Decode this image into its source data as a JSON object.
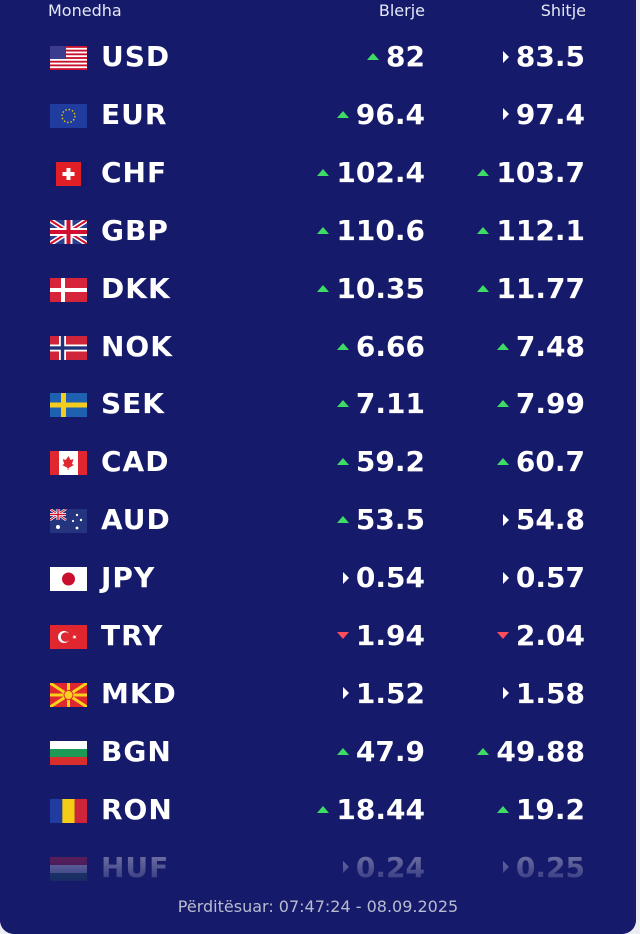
{
  "header": {
    "currency": "Monedha",
    "buy": "Blerje",
    "sell": "Shitje"
  },
  "rates": [
    {
      "code": "USD",
      "flag": "us-flag-icon",
      "buy": "82",
      "buy_trend": "up",
      "sell": "83.5",
      "sell_trend": "flat"
    },
    {
      "code": "EUR",
      "flag": "eu-flag-icon",
      "buy": "96.4",
      "buy_trend": "up",
      "sell": "97.4",
      "sell_trend": "flat"
    },
    {
      "code": "CHF",
      "flag": "ch-flag-icon",
      "buy": "102.4",
      "buy_trend": "up",
      "sell": "103.7",
      "sell_trend": "up"
    },
    {
      "code": "GBP",
      "flag": "gb-flag-icon",
      "buy": "110.6",
      "buy_trend": "up",
      "sell": "112.1",
      "sell_trend": "up"
    },
    {
      "code": "DKK",
      "flag": "dk-flag-icon",
      "buy": "10.35",
      "buy_trend": "up",
      "sell": "11.77",
      "sell_trend": "up"
    },
    {
      "code": "NOK",
      "flag": "no-flag-icon",
      "buy": "6.66",
      "buy_trend": "up",
      "sell": "7.48",
      "sell_trend": "up"
    },
    {
      "code": "SEK",
      "flag": "se-flag-icon",
      "buy": "7.11",
      "buy_trend": "up",
      "sell": "7.99",
      "sell_trend": "up"
    },
    {
      "code": "CAD",
      "flag": "ca-flag-icon",
      "buy": "59.2",
      "buy_trend": "up",
      "sell": "60.7",
      "sell_trend": "up"
    },
    {
      "code": "AUD",
      "flag": "au-flag-icon",
      "buy": "53.5",
      "buy_trend": "up",
      "sell": "54.8",
      "sell_trend": "flat"
    },
    {
      "code": "JPY",
      "flag": "jp-flag-icon",
      "buy": "0.54",
      "buy_trend": "flat",
      "sell": "0.57",
      "sell_trend": "flat"
    },
    {
      "code": "TRY",
      "flag": "tr-flag-icon",
      "buy": "1.94",
      "buy_trend": "down",
      "sell": "2.04",
      "sell_trend": "down"
    },
    {
      "code": "MKD",
      "flag": "mk-flag-icon",
      "buy": "1.52",
      "buy_trend": "flat",
      "sell": "1.58",
      "sell_trend": "flat"
    },
    {
      "code": "BGN",
      "flag": "bg-flag-icon",
      "buy": "47.9",
      "buy_trend": "up",
      "sell": "49.88",
      "sell_trend": "up"
    },
    {
      "code": "RON",
      "flag": "ro-flag-icon",
      "buy": "18.44",
      "buy_trend": "up",
      "sell": "19.2",
      "sell_trend": "up"
    },
    {
      "code": "HUF",
      "flag": "hu-flag-icon",
      "buy": "0.24",
      "buy_trend": "flat",
      "sell": "0.25",
      "sell_trend": "flat"
    }
  ],
  "footer": {
    "updated": "Përditësuar: 07:47:24 - 08.09.2025"
  },
  "colors": {
    "panel": "#161a6b",
    "up": "#3ddc64",
    "down": "#ff4d5a",
    "text": "#ffffff"
  }
}
